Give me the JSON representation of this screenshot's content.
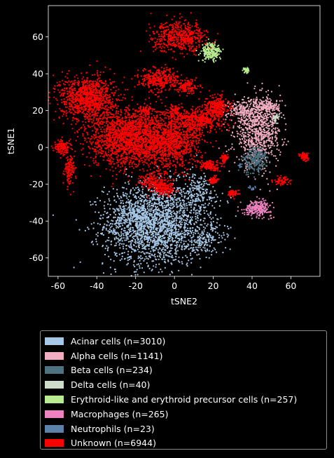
{
  "chart_data": {
    "type": "scatter",
    "title": "",
    "xlabel": "tSNE2",
    "ylabel": "tSNE1",
    "xlim": [
      -65,
      75
    ],
    "ylim": [
      -70,
      77
    ],
    "xticks": [
      "-60",
      "-40",
      "-20",
      "0",
      "20",
      "40",
      "60"
    ],
    "yticks": [
      "-60",
      "-40",
      "-20",
      "0",
      "20",
      "40",
      "60"
    ],
    "xtick_values": [
      -60,
      -40,
      -20,
      0,
      20,
      40,
      60
    ],
    "ytick_values": [
      -60,
      -40,
      -20,
      0,
      20,
      40,
      60
    ],
    "grid": false,
    "legend_position": "below",
    "series": [
      {
        "name": "Acinar cells (n=3010)",
        "color": "#a6c8e6",
        "clusters": [
          [
            -10,
            -42,
            13,
            11,
            0.68
          ],
          [
            12,
            -25,
            6,
            6,
            0.07
          ],
          [
            -20,
            -35,
            5,
            4,
            0.05
          ],
          [
            16,
            -50,
            5,
            4,
            0.05
          ]
        ]
      },
      {
        "name": "Alpha cells (n=1141)",
        "color": "#f2aec0",
        "clusters": [
          [
            43,
            8,
            6,
            9,
            0.7
          ],
          [
            35,
            20,
            4,
            3,
            0.15
          ],
          [
            48,
            22,
            3,
            2,
            0.15
          ]
        ]
      },
      {
        "name": "Beta cells (n=234)",
        "color": "#4e7280",
        "clusters": [
          [
            41,
            -8,
            3,
            3.5,
            0.7
          ],
          [
            44,
            -5,
            2,
            2,
            0.3
          ]
        ]
      },
      {
        "name": "Delta cells (n=40)",
        "color": "#cfdcc9",
        "clusters": [
          [
            52,
            16,
            1,
            1,
            1.0
          ]
        ]
      },
      {
        "name": "Erythroid-like and erythroid precursor cells (n=257)",
        "color": "#b9ec90",
        "clusters": [
          [
            19,
            52,
            2.5,
            2.5,
            0.85
          ],
          [
            37,
            42,
            0.7,
            0.7,
            0.15
          ]
        ]
      },
      {
        "name": "Macrophages (n=265)",
        "color": "#ec82bf",
        "clusters": [
          [
            43,
            -33,
            3.5,
            2,
            1.0
          ]
        ]
      },
      {
        "name": "Neutrophils (n=23)",
        "color": "#5a82aa",
        "clusters": [
          [
            40,
            -22,
            0.7,
            0.7,
            0.6
          ],
          [
            34,
            -10,
            0.7,
            0.7,
            0.4
          ]
        ]
      },
      {
        "name": "Unknown (n=6944)",
        "color": "#ff0000",
        "clusters": [
          [
            -45,
            27,
            7,
            6,
            0.15
          ],
          [
            -22,
            5,
            11,
            8,
            0.28
          ],
          [
            0,
            3,
            7,
            7,
            0.12
          ],
          [
            3,
            60,
            7,
            4,
            0.08
          ],
          [
            -8,
            37,
            5,
            3,
            0.05
          ],
          [
            7,
            33,
            3,
            2,
            0.02
          ],
          [
            13,
            15,
            6,
            3,
            0.06
          ],
          [
            22,
            22,
            3,
            3,
            0.04
          ],
          [
            -58,
            0,
            2,
            2,
            0.02
          ],
          [
            -54,
            -12,
            1.3,
            4,
            0.02
          ],
          [
            -12,
            -18,
            3,
            2,
            0.02
          ],
          [
            67,
            -5,
            1.3,
            1.3,
            0.01
          ],
          [
            55,
            -18,
            2,
            1.3,
            0.01
          ],
          [
            18,
            -10,
            3,
            1.3,
            0.02
          ],
          [
            26,
            -6,
            1,
            1,
            0.01
          ],
          [
            0,
            20,
            1.5,
            1.5,
            0.01
          ],
          [
            -15,
            20,
            1.5,
            1.5,
            0.01
          ],
          [
            -6,
            -22,
            3,
            2,
            0.03
          ],
          [
            30,
            -25,
            1.5,
            1,
            0.01
          ],
          [
            20,
            -18,
            1,
            1,
            0.01
          ]
        ]
      }
    ]
  }
}
